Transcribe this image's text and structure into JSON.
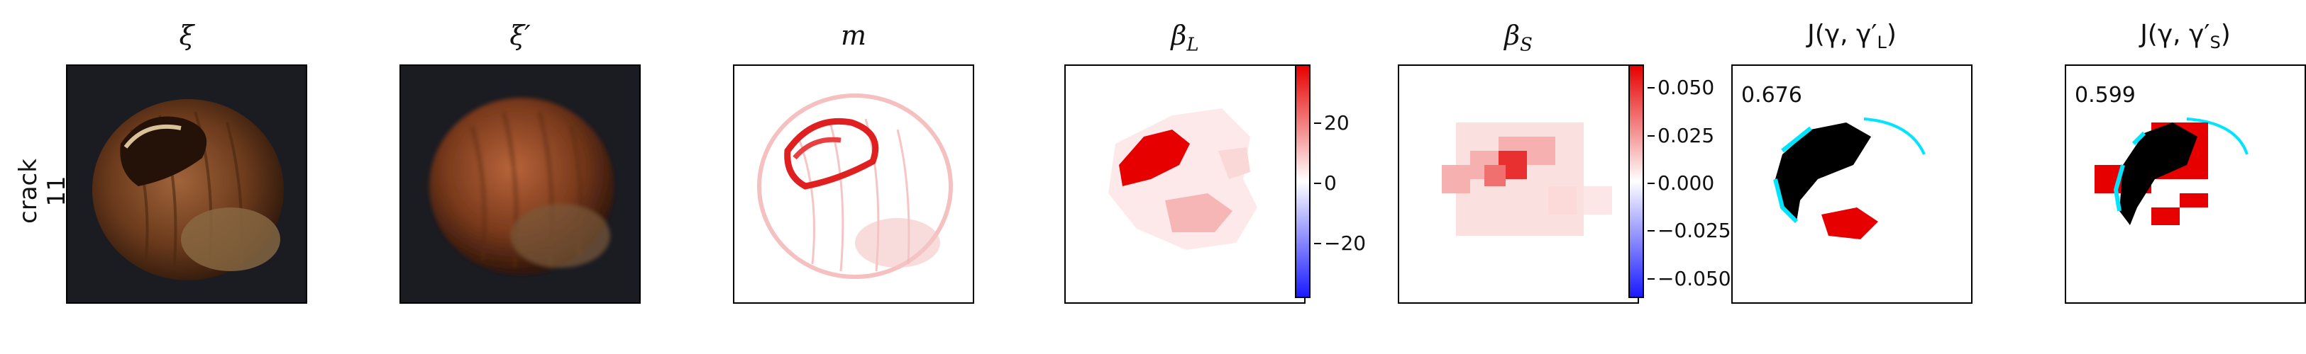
{
  "row_label": {
    "line1": "crack",
    "line2": "11"
  },
  "titles": {
    "xi": "ξ",
    "xi_prime": "ξ′",
    "m": "m",
    "beta_L": "β",
    "beta_L_sub": "L",
    "beta_S": "β",
    "beta_S_sub": "S",
    "J_L": "J(γ, γ′",
    "J_L_sub": "L",
    "J_S": "J(γ, γ′",
    "J_S_sub": "S",
    "close_paren": ")"
  },
  "scores": {
    "J_L": "0.676",
    "J_S": "0.599"
  },
  "colorbar_L": {
    "ticks": [
      "20",
      "0",
      "−20"
    ]
  },
  "colorbar_S": {
    "ticks": [
      "0.050",
      "0.025",
      "0.000",
      "−0.025",
      "−0.050"
    ]
  },
  "colors": {
    "red": "#e60000",
    "blue": "#1a1aff",
    "cyan": "#00e5ff",
    "black": "#000000"
  }
}
